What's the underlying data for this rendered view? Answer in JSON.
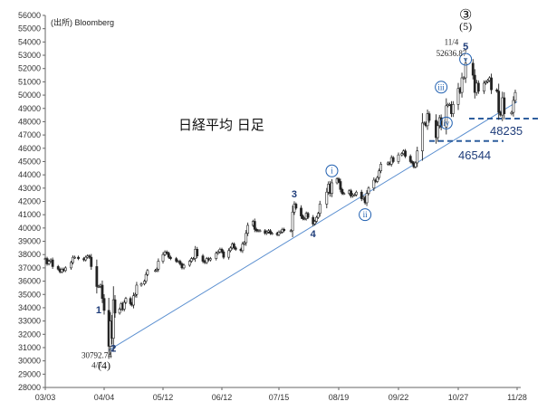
{
  "chart_data": {
    "type": "line",
    "subtype": "candlestick",
    "title": "日経平均 日足",
    "source": "(出所) Bloomberg",
    "xlabel": "",
    "ylabel": "",
    "ylim": [
      28000,
      56000
    ],
    "ytick_step": 1000,
    "x_ticks": [
      "03/03",
      "04/04",
      "05/12",
      "06/12",
      "07/15",
      "08/19",
      "09/22",
      "10/27",
      "11/28"
    ],
    "grid": false,
    "price_series": [
      [
        "03/03",
        37700
      ],
      [
        "03/04",
        37300
      ],
      [
        "03/05",
        37500
      ],
      [
        "03/06",
        37600
      ],
      [
        "03/07",
        37100
      ],
      [
        "03/10",
        36900
      ],
      [
        "03/11",
        36700
      ],
      [
        "03/12",
        36900
      ],
      [
        "03/13",
        36800
      ],
      [
        "03/14",
        37000
      ],
      [
        "03/17",
        37400
      ],
      [
        "03/18",
        37800
      ],
      [
        "03/19",
        37800
      ],
      [
        "03/21",
        37700
      ],
      [
        "03/24",
        37600
      ],
      [
        "03/25",
        37800
      ],
      [
        "03/26",
        37900
      ],
      [
        "03/27",
        37800
      ],
      [
        "03/28",
        37100
      ],
      [
        "03/31",
        35600
      ],
      [
        "04/01",
        35600
      ],
      [
        "04/02",
        35700
      ],
      [
        "04/03",
        34700
      ],
      [
        "04/04",
        33800
      ],
      [
        "04/07",
        31100
      ],
      [
        "04/08",
        33000
      ],
      [
        "04/09",
        31700
      ],
      [
        "04/10",
        34600
      ],
      [
        "04/11",
        33600
      ],
      [
        "04/14",
        33900
      ],
      [
        "04/15",
        34300
      ],
      [
        "04/16",
        33900
      ],
      [
        "04/17",
        34400
      ],
      [
        "04/18",
        34700
      ],
      [
        "04/21",
        34300
      ],
      [
        "04/22",
        34200
      ],
      [
        "04/23",
        34900
      ],
      [
        "04/24",
        35000
      ],
      [
        "04/25",
        35700
      ],
      [
        "04/28",
        35800
      ],
      [
        "04/30",
        36000
      ],
      [
        "05/01",
        36500
      ],
      [
        "05/02",
        36800
      ],
      [
        "05/07",
        36800
      ],
      [
        "05/08",
        36900
      ],
      [
        "05/09",
        37500
      ],
      [
        "05/12",
        38000
      ],
      [
        "05/13",
        38200
      ],
      [
        "05/14",
        38100
      ],
      [
        "05/15",
        37800
      ],
      [
        "05/16",
        37700
      ],
      [
        "05/19",
        37500
      ],
      [
        "05/20",
        37500
      ],
      [
        "05/21",
        37300
      ],
      [
        "05/22",
        37000
      ],
      [
        "05/23",
        37200
      ],
      [
        "05/26",
        37500
      ],
      [
        "05/27",
        37700
      ],
      [
        "05/28",
        37700
      ],
      [
        "05/29",
        38400
      ],
      [
        "05/30",
        37900
      ],
      [
        "06/02",
        37500
      ],
      [
        "06/03",
        37400
      ],
      [
        "06/04",
        37700
      ],
      [
        "06/05",
        37600
      ],
      [
        "06/06",
        37700
      ],
      [
        "06/09",
        38100
      ],
      [
        "06/10",
        38200
      ],
      [
        "06/11",
        38400
      ],
      [
        "06/12",
        38200
      ],
      [
        "06/13",
        37800
      ],
      [
        "06/16",
        38300
      ],
      [
        "06/17",
        38500
      ],
      [
        "06/18",
        38800
      ],
      [
        "06/19",
        38500
      ],
      [
        "06/20",
        38400
      ],
      [
        "06/23",
        38300
      ],
      [
        "06/24",
        38800
      ],
      [
        "06/25",
        38900
      ],
      [
        "06/26",
        39600
      ],
      [
        "06/27",
        40200
      ],
      [
        "06/30",
        40500
      ],
      [
        "07/01",
        39900
      ],
      [
        "07/02",
        39800
      ],
      [
        "07/03",
        39800
      ],
      [
        "07/04",
        39800
      ],
      [
        "07/07",
        39600
      ],
      [
        "07/08",
        39700
      ],
      [
        "07/09",
        39800
      ],
      [
        "07/10",
        39600
      ],
      [
        "07/11",
        39600
      ],
      [
        "07/14",
        39500
      ],
      [
        "07/15",
        39700
      ],
      [
        "07/16",
        39700
      ],
      [
        "07/17",
        39900
      ],
      [
        "07/18",
        39800
      ],
      [
        "07/22",
        39800
      ],
      [
        "07/23",
        41200
      ],
      [
        "07/24",
        41800
      ],
      [
        "07/25",
        41500
      ],
      [
        "07/28",
        40900
      ],
      [
        "07/29",
        40700
      ],
      [
        "07/30",
        40700
      ],
      [
        "07/31",
        41100
      ],
      [
        "08/01",
        40800
      ],
      [
        "08/04",
        40300
      ],
      [
        "08/05",
        40500
      ],
      [
        "08/06",
        40800
      ],
      [
        "08/07",
        41100
      ],
      [
        "08/08",
        41800
      ],
      [
        "08/12",
        42700
      ],
      [
        "08/13",
        43300
      ],
      [
        "08/14",
        42600
      ],
      [
        "08/15",
        43400
      ],
      [
        "08/18",
        43700
      ],
      [
        "08/19",
        43500
      ],
      [
        "08/20",
        42900
      ],
      [
        "08/21",
        42600
      ],
      [
        "08/22",
        42600
      ],
      [
        "08/25",
        42800
      ],
      [
        "08/26",
        42400
      ],
      [
        "08/27",
        42500
      ],
      [
        "08/28",
        42500
      ],
      [
        "08/29",
        42700
      ],
      [
        "09/01",
        42200
      ],
      [
        "09/02",
        42300
      ],
      [
        "09/03",
        41900
      ],
      [
        "09/04",
        42600
      ],
      [
        "09/05",
        43000
      ],
      [
        "09/08",
        43600
      ],
      [
        "09/09",
        43500
      ],
      [
        "09/10",
        43800
      ],
      [
        "09/11",
        44300
      ],
      [
        "09/12",
        44800
      ],
      [
        "09/16",
        44900
      ],
      [
        "09/17",
        44800
      ],
      [
        "09/18",
        45300
      ],
      [
        "09/19",
        45000
      ],
      [
        "09/22",
        45500
      ],
      [
        "09/24",
        45600
      ],
      [
        "09/25",
        45800
      ],
      [
        "09/26",
        45400
      ],
      [
        "09/29",
        45000
      ],
      [
        "09/30",
        44900
      ],
      [
        "10/01",
        44600
      ],
      [
        "10/02",
        44900
      ],
      [
        "10/03",
        45800
      ],
      [
        "10/06",
        47900
      ],
      [
        "10/07",
        47900
      ],
      [
        "10/08",
        47700
      ],
      [
        "10/09",
        48600
      ],
      [
        "10/10",
        48100
      ],
      [
        "10/14",
        46800
      ],
      [
        "10/15",
        47700
      ],
      [
        "10/16",
        48300
      ],
      [
        "10/17",
        47600
      ],
      [
        "10/20",
        49200
      ],
      [
        "10/21",
        49300
      ],
      [
        "10/22",
        49300
      ],
      [
        "10/23",
        48600
      ],
      [
        "10/24",
        49300
      ],
      [
        "10/27",
        50500
      ],
      [
        "10/28",
        50200
      ],
      [
        "10/29",
        51300
      ],
      [
        "10/30",
        51300
      ],
      [
        "10/31",
        52400
      ],
      [
        "11/04",
        51500
      ],
      [
        "11/05",
        50200
      ],
      [
        "11/06",
        50900
      ],
      [
        "11/07",
        50300
      ],
      [
        "11/10",
        50900
      ],
      [
        "11/11",
        51000
      ],
      [
        "11/12",
        51100
      ],
      [
        "11/13",
        51300
      ],
      [
        "11/14",
        50400
      ],
      [
        "11/17",
        50300
      ],
      [
        "11/18",
        48700
      ],
      [
        "11/19",
        48500
      ],
      [
        "11/20",
        49800
      ],
      [
        "11/21",
        48600
      ],
      [
        "11/25",
        48700
      ],
      [
        "11/26",
        49600
      ],
      [
        "11/27",
        50200
      ]
    ],
    "trendline": [
      [
        "04/07",
        30800
      ],
      [
        "11/28",
        49500
      ]
    ],
    "levels": [
      {
        "label": "46544",
        "value": 46544
      },
      {
        "label": "48235",
        "value": 48235
      }
    ],
    "wave_labels": [
      {
        "text": "1",
        "style": "bold",
        "x": "04/01",
        "y": 33600
      },
      {
        "text": "2",
        "style": "bold",
        "x": "04/10",
        "y": 30700
      },
      {
        "text": "3",
        "style": "bold",
        "x": "07/24",
        "y": 42300
      },
      {
        "text": "4",
        "style": "bold",
        "x": "08/04",
        "y": 39300
      },
      {
        "text": "5",
        "style": "bold",
        "x": "10/31",
        "y": 53400
      },
      {
        "text": "i",
        "style": "circled",
        "x": "08/15",
        "y": 44300
      },
      {
        "text": "ii",
        "style": "circled",
        "x": "09/03",
        "y": 41000
      },
      {
        "text": "iii",
        "style": "circled",
        "x": "10/17",
        "y": 50600
      },
      {
        "text": "iv",
        "style": "circled",
        "x": "10/20",
        "y": 47900
      },
      {
        "text": "v",
        "style": "circled",
        "x": "10/31",
        "y": 52700
      }
    ],
    "annotations": [
      {
        "id": "low-date",
        "text": "4/7",
        "x": "03/31",
        "y": 29450
      },
      {
        "id": "low-price",
        "text": "30792.74",
        "x": "03/31",
        "y": 30200
      },
      {
        "id": "low-wave",
        "text": "(4)",
        "x": "04/04",
        "y": 29400
      },
      {
        "id": "high-date",
        "text": "11/4",
        "x": "10/23",
        "y": 53800
      },
      {
        "id": "high-price",
        "text": "52636.87",
        "x": "10/23",
        "y": 52950
      },
      {
        "id": "high-wave",
        "text": "(5)",
        "x": "10/31",
        "y": 54900
      },
      {
        "id": "high-degree",
        "text": "③",
        "x": "10/31",
        "y": 55700
      }
    ]
  }
}
